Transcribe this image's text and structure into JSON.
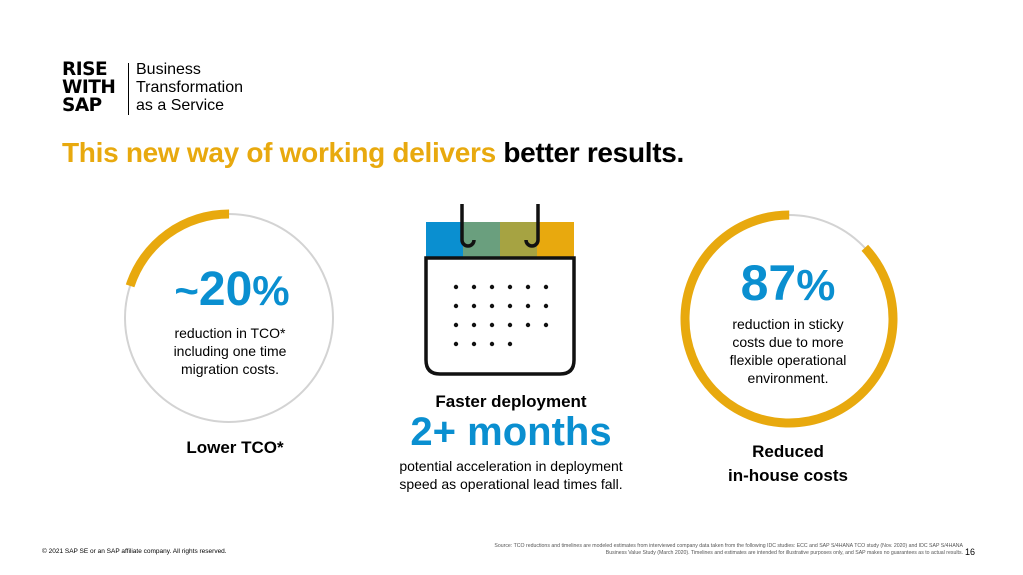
{
  "logo": {
    "rise_lines": [
      "RISE",
      "WITH",
      "SAP"
    ],
    "tagline_lines": [
      "Business",
      "Transformation",
      "as a Service"
    ]
  },
  "headline": {
    "highlight": "This new way of working delivers",
    "rest": "better results."
  },
  "left_stat": {
    "prefix": "~",
    "value": "20",
    "suffix": "%",
    "description_lines": [
      "reduction in TCO*",
      "including one time",
      "migration costs."
    ],
    "label": "Lower TCO*",
    "ring_fraction": 0.2
  },
  "middle_stat": {
    "title": "Faster deployment",
    "value": "2+ months",
    "description_lines": [
      "potential acceleration in deployment",
      "speed as operational lead times fall."
    ]
  },
  "right_stat": {
    "value": "87",
    "suffix": "%",
    "description_lines": [
      "reduction in sticky",
      "costs due to more",
      "flexible operational",
      "environment."
    ],
    "label_lines": [
      "Reduced",
      "in-house costs"
    ],
    "ring_fraction": 0.87
  },
  "footer": {
    "copyright": "© 2021 SAP SE or an SAP affiliate company. All rights reserved.",
    "source_lines": [
      "Source: TCO reductions and timelines are modeled estimates from interviewed company data taken from the following IDC studies: ECC and SAP S/4HANA TCO study (Nov. 2020) and IDC SAP S/4HANA",
      "Business Value Study (March 2020). Timelines and estimates are intended for illustrative purposes only, and SAP makes no guarantees as to actual results."
    ],
    "page_number": "16"
  },
  "colors": {
    "gold": "#e8a90e",
    "blue": "#0a8fd0",
    "ring_gray": "#d3d3d3",
    "calendar_blue": "#0a8fd0",
    "calendar_green": "#6a9f7e",
    "calendar_olive": "#a6a342",
    "calendar_gold": "#e8a90e"
  }
}
